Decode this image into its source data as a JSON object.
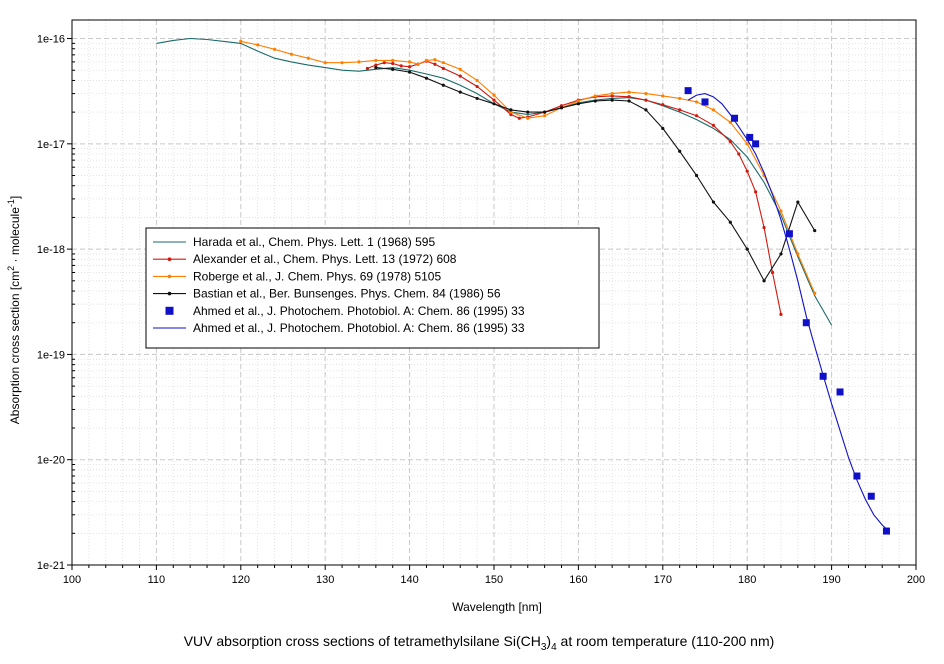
{
  "chart_data": {
    "type": "line",
    "title": "",
    "caption_prefix": "VUV absorption cross sections of tetramethylsilane Si(CH",
    "caption_sub1": "3",
    "caption_mid": ")",
    "caption_sub2": "4",
    "caption_suffix": " at room temperature (110-200 nm)",
    "xlabel": "Wavelength [nm]",
    "ylabel_prefix": "Absorption cross section [cm",
    "ylabel_sup1": "2",
    "ylabel_mid": " · molecule",
    "ylabel_sup2": "-1",
    "ylabel_suffix": "]",
    "xlim": [
      100,
      200
    ],
    "ylim": [
      1e-21,
      1.5e-16
    ],
    "yscale": "log",
    "grid": true,
    "legend_position": "center-left",
    "xticks": [
      100,
      110,
      120,
      130,
      140,
      150,
      160,
      170,
      180,
      190,
      200
    ],
    "xtick_labels": [
      "100",
      "110",
      "120",
      "130",
      "140",
      "150",
      "160",
      "170",
      "180",
      "190",
      "200"
    ],
    "yticks": [
      1e-21,
      1e-20,
      1e-19,
      1e-18,
      1e-17,
      1e-16
    ],
    "ytick_labels": [
      "1e-21",
      "1e-20",
      "1e-19",
      "1e-18",
      "1e-17",
      "1e-16"
    ],
    "series": [
      {
        "name": "Harada et al., Chem. Phys. Lett. 1 (1968) 595",
        "color": "#1a6a6a",
        "marker": "none",
        "x": [
          110,
          112,
          114,
          116,
          118,
          120,
          122,
          124,
          126,
          128,
          130,
          132,
          134,
          136,
          138,
          140,
          142,
          144,
          146,
          148,
          150,
          152,
          154,
          156,
          158,
          160,
          162,
          164,
          166,
          168,
          170,
          172,
          174,
          176,
          178,
          180,
          182,
          184,
          186,
          188,
          190
        ],
        "y": [
          9e-17,
          9.6e-17,
          1e-16,
          9.8e-17,
          9.4e-17,
          9e-17,
          7.6e-17,
          6.5e-17,
          6e-17,
          5.6e-17,
          5.3e-17,
          5e-17,
          4.9e-17,
          5.1e-17,
          5.3e-17,
          5e-17,
          4.6e-17,
          4.2e-17,
          3.6e-17,
          3e-17,
          2.4e-17,
          2e-17,
          1.9e-17,
          2e-17,
          2.2e-17,
          2.45e-17,
          2.6e-17,
          2.7e-17,
          2.75e-17,
          2.6e-17,
          2.3e-17,
          2e-17,
          1.7e-17,
          1.4e-17,
          1.1e-17,
          7.5e-18,
          4.3e-18,
          2.1e-18,
          8.5e-19,
          3.6e-19,
          1.9e-19
        ]
      },
      {
        "name": "Alexander et al., Chem. Phys. Lett. 13 (1972) 608",
        "color": "#d01a10",
        "marker": "dot",
        "x": [
          135,
          136,
          137,
          138,
          139,
          140,
          141,
          142,
          143,
          144,
          146,
          148,
          150,
          152,
          153,
          154,
          156,
          158,
          160,
          162,
          164,
          166,
          168,
          170,
          172,
          174,
          176,
          178,
          179,
          180,
          181,
          182,
          183,
          184
        ],
        "y": [
          5.2e-17,
          5.6e-17,
          5.9e-17,
          5.8e-17,
          5.5e-17,
          5.4e-17,
          5.7e-17,
          6.1e-17,
          5.7e-17,
          5.2e-17,
          4.4e-17,
          3.5e-17,
          2.6e-17,
          1.9e-17,
          1.75e-17,
          1.8e-17,
          2e-17,
          2.3e-17,
          2.6e-17,
          2.8e-17,
          2.85e-17,
          2.8e-17,
          2.6e-17,
          2.35e-17,
          2.1e-17,
          1.85e-17,
          1.5e-17,
          1.05e-17,
          8e-18,
          5.5e-18,
          3.5e-18,
          1.6e-18,
          6e-19,
          2.4e-19
        ]
      },
      {
        "name": "Roberge et al.,  J. Chem. Phys. 69 (1978) 5105",
        "color": "#ff7f00",
        "marker": "dot",
        "x": [
          120,
          122,
          124,
          126,
          128,
          130,
          132,
          134,
          136,
          138,
          140,
          141,
          142,
          143,
          144,
          146,
          148,
          150,
          152,
          154,
          156,
          158,
          160,
          162,
          164,
          166,
          168,
          170,
          172,
          174,
          176,
          178,
          180,
          182,
          184,
          186,
          188
        ],
        "y": [
          9.4e-17,
          8.7e-17,
          7.9e-17,
          7.1e-17,
          6.5e-17,
          5.9e-17,
          5.9e-17,
          6e-17,
          6.2e-17,
          6.2e-17,
          6e-17,
          5.7e-17,
          6.2e-17,
          6.3e-17,
          5.9e-17,
          5.1e-17,
          4e-17,
          2.9e-17,
          2e-17,
          1.75e-17,
          1.85e-17,
          2.2e-17,
          2.55e-17,
          2.85e-17,
          3e-17,
          3.1e-17,
          3e-17,
          2.85e-17,
          2.7e-17,
          2.5e-17,
          2.1e-17,
          1.6e-17,
          1e-17,
          5e-18,
          2.3e-18,
          9e-19,
          3.8e-19
        ]
      },
      {
        "name": "Bastian et al.,  Ber. Bunsenges. Phys. Chem. 84 (1986) 56",
        "color": "#111111",
        "marker": "dot",
        "x": [
          136,
          138,
          140,
          142,
          144,
          146,
          148,
          150,
          152,
          154,
          156,
          158,
          160,
          162,
          164,
          166,
          168,
          170,
          172,
          174,
          176,
          178,
          180,
          182,
          184,
          186,
          188
        ],
        "y": [
          5.3e-17,
          5.1e-17,
          4.8e-17,
          4.2e-17,
          3.6e-17,
          3.1e-17,
          2.7e-17,
          2.4e-17,
          2.1e-17,
          2e-17,
          2e-17,
          2.2e-17,
          2.4e-17,
          2.55e-17,
          2.6e-17,
          2.55e-17,
          2.1e-17,
          1.4e-17,
          8.5e-18,
          5e-18,
          2.8e-18,
          1.8e-18,
          1e-18,
          5e-19,
          9e-19,
          2.8e-18,
          1.5e-18
        ]
      },
      {
        "name": "Ahmed et al., J. Photochem. Photobiol. A: Chem. 86 (1995) 33",
        "color": "#1010c8",
        "marker": "square",
        "x": [
          173,
          175,
          178.5,
          180.3,
          181,
          185,
          187,
          189,
          191,
          193,
          194.7,
          196.5
        ],
        "y": [
          3.2e-17,
          2.5e-17,
          1.75e-17,
          1.15e-17,
          1e-17,
          1.4e-18,
          2e-19,
          6.2e-20,
          4.4e-20,
          7e-21,
          4.5e-21,
          2.1e-21
        ]
      },
      {
        "name": "Ahmed et al., J. Photochem. Photobiol. A: Chem. 86 (1995) 33",
        "color": "#1010c8",
        "marker": "none",
        "x": [
          173,
          174,
          175,
          176,
          177,
          178,
          179,
          180,
          181,
          182,
          183,
          184,
          185,
          186,
          187,
          188,
          189,
          190,
          191,
          192,
          193,
          194,
          195,
          196,
          196.5
        ],
        "y": [
          2.6e-17,
          2.9e-17,
          3e-17,
          2.8e-17,
          2.4e-17,
          1.9e-17,
          1.45e-17,
          1.1e-17,
          8e-18,
          5.3e-18,
          3.3e-18,
          1.9e-18,
          1e-18,
          5e-19,
          2.3e-19,
          1.2e-19,
          6.3e-20,
          3.4e-20,
          1.9e-20,
          1.05e-20,
          6.4e-21,
          4.2e-21,
          3e-21,
          2.4e-21,
          2.2e-21
        ]
      }
    ]
  }
}
